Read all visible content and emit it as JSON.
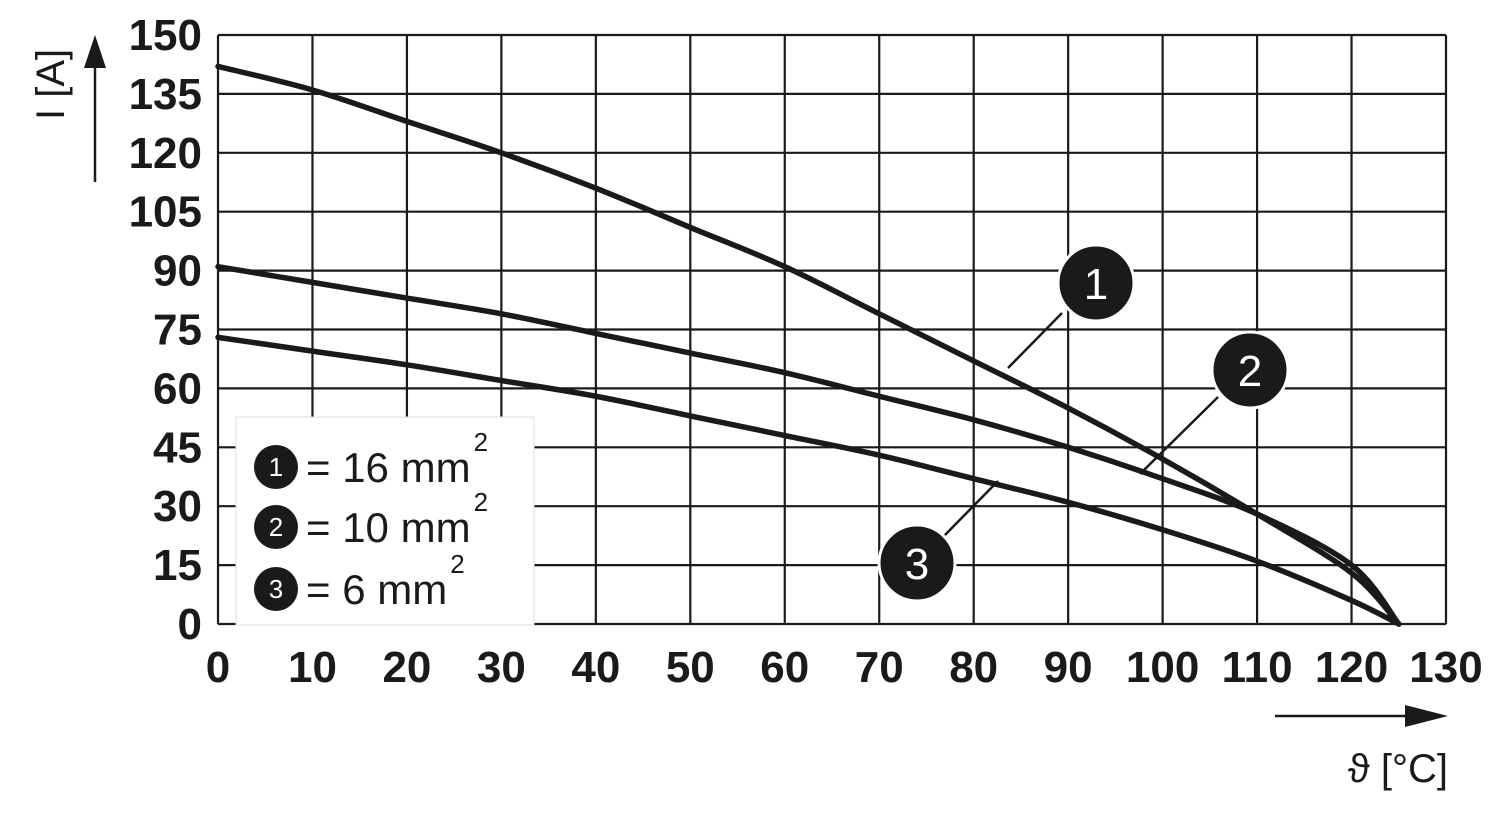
{
  "chart_data": {
    "type": "line",
    "xlabel": "ϑ [°C]",
    "ylabel": "I [A]",
    "xlim": [
      0,
      130
    ],
    "ylim": [
      0,
      150
    ],
    "x_ticks": [
      "0",
      "10",
      "20",
      "30",
      "40",
      "50",
      "60",
      "70",
      "80",
      "90",
      "100",
      "110",
      "120",
      "130"
    ],
    "y_ticks": [
      "0",
      "15",
      "30",
      "45",
      "60",
      "75",
      "90",
      "105",
      "120",
      "135",
      "150"
    ],
    "grid": true,
    "legend_position": "bottom-left",
    "series": [
      {
        "marker": "1",
        "legend": "= 16 mm",
        "legend_sup": "2",
        "x": [
          0,
          10,
          20,
          30,
          40,
          50,
          60,
          70,
          80,
          90,
          100,
          110,
          120,
          125
        ],
        "y": [
          142,
          136,
          128,
          120,
          111,
          101,
          91,
          79,
          67,
          55,
          42,
          28,
          13,
          0
        ]
      },
      {
        "marker": "2",
        "legend": "= 10 mm",
        "legend_sup": "2",
        "x": [
          0,
          10,
          20,
          30,
          40,
          50,
          60,
          70,
          80,
          90,
          100,
          110,
          120,
          125
        ],
        "y": [
          91,
          87,
          83,
          79,
          74,
          69,
          64,
          58,
          52,
          45,
          37,
          28,
          15,
          0
        ]
      },
      {
        "marker": "3",
        "legend": "= 6 mm",
        "legend_sup": "2",
        "x": [
          0,
          10,
          20,
          30,
          40,
          50,
          60,
          70,
          80,
          90,
          100,
          110,
          120,
          125
        ],
        "y": [
          73,
          69.5,
          66,
          62,
          58,
          53,
          48,
          43,
          37,
          31,
          24,
          16,
          6,
          0
        ]
      }
    ]
  }
}
